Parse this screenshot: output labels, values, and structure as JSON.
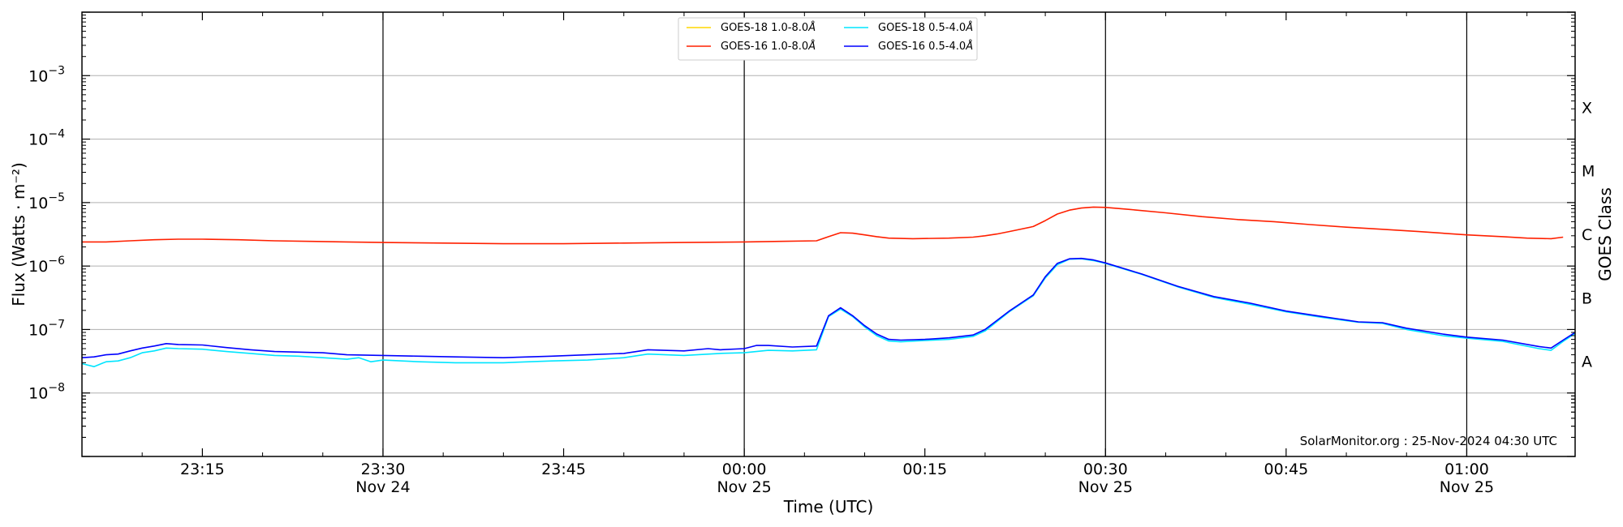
{
  "chart_data": {
    "type": "line",
    "title": "",
    "xlabel": "Time (UTC)",
    "ylabel": "Flux (Watts · m⁻²)",
    "y2label": "GOES Class",
    "yscale": "log",
    "xlim": [
      "2024-11-24 23:05",
      "2024-11-25 01:09"
    ],
    "ylim": [
      1e-09,
      0.01
    ],
    "grid": "horizontal",
    "legend_position": "top-center",
    "x_ticks": [
      {
        "time": "2024-11-24 23:15",
        "label": "23:15",
        "sublabel": ""
      },
      {
        "time": "2024-11-24 23:30",
        "label": "23:30",
        "sublabel": "Nov 24"
      },
      {
        "time": "2024-11-24 23:45",
        "label": "23:45",
        "sublabel": ""
      },
      {
        "time": "2024-11-25 00:00",
        "label": "00:00",
        "sublabel": "Nov 25"
      },
      {
        "time": "2024-11-25 00:15",
        "label": "00:15",
        "sublabel": ""
      },
      {
        "time": "2024-11-25 00:30",
        "label": "00:30",
        "sublabel": "Nov 25"
      },
      {
        "time": "2024-11-25 00:45",
        "label": "00:45",
        "sublabel": ""
      },
      {
        "time": "2024-11-25 01:00",
        "label": "01:00",
        "sublabel": "Nov 25"
      }
    ],
    "y_ticks": [
      {
        "value": 1e-08,
        "base": "10",
        "exp": "−8"
      },
      {
        "value": 1e-07,
        "base": "10",
        "exp": "−7"
      },
      {
        "value": 1e-06,
        "base": "10",
        "exp": "−6"
      },
      {
        "value": 1e-05,
        "base": "10",
        "exp": "−5"
      },
      {
        "value": 0.0001,
        "base": "10",
        "exp": "−4"
      },
      {
        "value": 0.001,
        "base": "10",
        "exp": "−3"
      }
    ],
    "vertical_lines": [
      "2024-11-24 23:30",
      "2024-11-25 00:00",
      "2024-11-25 00:30",
      "2024-11-25 01:00"
    ],
    "goes_classes": [
      {
        "label": "A",
        "value": 3.16e-08
      },
      {
        "label": "B",
        "value": 3.16e-07
      },
      {
        "label": "C",
        "value": 3.16e-06
      },
      {
        "label": "M",
        "value": 3.16e-05
      },
      {
        "label": "X",
        "value": 0.000316
      }
    ],
    "legend": [
      {
        "label": "GOES-18 1.0-8.0",
        "unit": "Å",
        "color": "#ffd700"
      },
      {
        "label": "GOES-18 0.5-4.0",
        "unit": "Å",
        "color": "#00e5ff"
      },
      {
        "label": "GOES-16 1.0-8.0",
        "unit": "Å",
        "color": "#ff2000"
      },
      {
        "label": "GOES-16 0.5-4.0",
        "unit": "Å",
        "color": "#0000ff"
      }
    ],
    "credit": "SolarMonitor.org : 25-Nov-2024 04:30 UTC",
    "series": [
      {
        "name": "GOES-16 1.0-8.0",
        "color": "#ff2000",
        "points": [
          [
            "2024-11-24 23:05",
            2.4e-06
          ],
          [
            "2024-11-24 23:07",
            2.4e-06
          ],
          [
            "2024-11-24 23:09",
            2.5e-06
          ],
          [
            "2024-11-24 23:11",
            2.6e-06
          ],
          [
            "2024-11-24 23:13",
            2.65e-06
          ],
          [
            "2024-11-24 23:15",
            2.65e-06
          ],
          [
            "2024-11-24 23:18",
            2.6e-06
          ],
          [
            "2024-11-24 23:21",
            2.5e-06
          ],
          [
            "2024-11-24 23:24",
            2.45e-06
          ],
          [
            "2024-11-24 23:27",
            2.4e-06
          ],
          [
            "2024-11-24 23:30",
            2.35e-06
          ],
          [
            "2024-11-24 23:35",
            2.3e-06
          ],
          [
            "2024-11-24 23:40",
            2.25e-06
          ],
          [
            "2024-11-24 23:45",
            2.25e-06
          ],
          [
            "2024-11-24 23:50",
            2.3e-06
          ],
          [
            "2024-11-24 23:55",
            2.35e-06
          ],
          [
            "2024-11-25 00:00",
            2.4e-06
          ],
          [
            "2024-11-25 00:03",
            2.45e-06
          ],
          [
            "2024-11-25 00:06",
            2.5e-06
          ],
          [
            "2024-11-25 00:07",
            2.9e-06
          ],
          [
            "2024-11-25 00:08",
            3.35e-06
          ],
          [
            "2024-11-25 00:09",
            3.3e-06
          ],
          [
            "2024-11-25 00:10",
            3.1e-06
          ],
          [
            "2024-11-25 00:11",
            2.9e-06
          ],
          [
            "2024-11-25 00:12",
            2.75e-06
          ],
          [
            "2024-11-25 00:14",
            2.7e-06
          ],
          [
            "2024-11-25 00:17",
            2.75e-06
          ],
          [
            "2024-11-25 00:19",
            2.85e-06
          ],
          [
            "2024-11-25 00:20",
            3e-06
          ],
          [
            "2024-11-25 00:21",
            3.2e-06
          ],
          [
            "2024-11-25 00:22",
            3.5e-06
          ],
          [
            "2024-11-25 00:24",
            4.2e-06
          ],
          [
            "2024-11-25 00:25",
            5.2e-06
          ],
          [
            "2024-11-25 00:26",
            6.6e-06
          ],
          [
            "2024-11-25 00:27",
            7.6e-06
          ],
          [
            "2024-11-25 00:28",
            8.2e-06
          ],
          [
            "2024-11-25 00:29",
            8.5e-06
          ],
          [
            "2024-11-25 00:30",
            8.4e-06
          ],
          [
            "2024-11-25 00:32",
            7.8e-06
          ],
          [
            "2024-11-25 00:35",
            6.9e-06
          ],
          [
            "2024-11-25 00:38",
            6e-06
          ],
          [
            "2024-11-25 00:41",
            5.4e-06
          ],
          [
            "2024-11-25 00:44",
            5e-06
          ],
          [
            "2024-11-25 00:47",
            4.5e-06
          ],
          [
            "2024-11-25 00:50",
            4.1e-06
          ],
          [
            "2024-11-25 00:53",
            3.8e-06
          ],
          [
            "2024-11-25 00:56",
            3.5e-06
          ],
          [
            "2024-11-25 01:00",
            3.1e-06
          ],
          [
            "2024-11-25 01:03",
            2.9e-06
          ],
          [
            "2024-11-25 01:05",
            2.75e-06
          ],
          [
            "2024-11-25 01:07",
            2.7e-06
          ],
          [
            "2024-11-25 01:08",
            2.85e-06
          ]
        ]
      },
      {
        "name": "GOES-18 0.5-4.0",
        "color": "#00e5ff",
        "points": [
          [
            "2024-11-24 23:05",
            2.9e-08
          ],
          [
            "2024-11-24 23:06",
            2.6e-08
          ],
          [
            "2024-11-24 23:07",
            3.1e-08
          ],
          [
            "2024-11-24 23:08",
            3.2e-08
          ],
          [
            "2024-11-24 23:09",
            3.6e-08
          ],
          [
            "2024-11-24 23:10",
            4.3e-08
          ],
          [
            "2024-11-24 23:11",
            4.6e-08
          ],
          [
            "2024-11-24 23:12",
            5.1e-08
          ],
          [
            "2024-11-24 23:13",
            5e-08
          ],
          [
            "2024-11-24 23:15",
            4.9e-08
          ],
          [
            "2024-11-24 23:17",
            4.5e-08
          ],
          [
            "2024-11-24 23:19",
            4.2e-08
          ],
          [
            "2024-11-24 23:21",
            3.9e-08
          ],
          [
            "2024-11-24 23:23",
            3.8e-08
          ],
          [
            "2024-11-24 23:25",
            3.6e-08
          ],
          [
            "2024-11-24 23:27",
            3.4e-08
          ],
          [
            "2024-11-24 23:28",
            3.6e-08
          ],
          [
            "2024-11-24 23:29",
            3.1e-08
          ],
          [
            "2024-11-24 23:30",
            3.3e-08
          ],
          [
            "2024-11-24 23:33",
            3.1e-08
          ],
          [
            "2024-11-24 23:36",
            3e-08
          ],
          [
            "2024-11-24 23:40",
            3e-08
          ],
          [
            "2024-11-24 23:44",
            3.2e-08
          ],
          [
            "2024-11-24 23:47",
            3.3e-08
          ],
          [
            "2024-11-24 23:50",
            3.6e-08
          ],
          [
            "2024-11-24 23:52",
            4.1e-08
          ],
          [
            "2024-11-24 23:55",
            3.9e-08
          ],
          [
            "2024-11-24 23:58",
            4.2e-08
          ],
          [
            "2024-11-25 00:00",
            4.3e-08
          ],
          [
            "2024-11-25 00:02",
            4.7e-08
          ],
          [
            "2024-11-25 00:04",
            4.6e-08
          ],
          [
            "2024-11-25 00:06",
            4.8e-08
          ],
          [
            "2024-11-25 00:07",
            1.6e-07
          ],
          [
            "2024-11-25 00:08",
            2.1e-07
          ],
          [
            "2024-11-25 00:09",
            1.6e-07
          ],
          [
            "2024-11-25 00:10",
            1.1e-07
          ],
          [
            "2024-11-25 00:11",
            8e-08
          ],
          [
            "2024-11-25 00:12",
            6.6e-08
          ],
          [
            "2024-11-25 00:13",
            6.4e-08
          ],
          [
            "2024-11-25 00:15",
            6.7e-08
          ],
          [
            "2024-11-25 00:17",
            7e-08
          ],
          [
            "2024-11-25 00:19",
            7.8e-08
          ],
          [
            "2024-11-25 00:20",
            9.5e-08
          ],
          [
            "2024-11-25 00:22",
            1.9e-07
          ],
          [
            "2024-11-25 00:24",
            3.4e-07
          ],
          [
            "2024-11-25 00:25",
            6.5e-07
          ],
          [
            "2024-11-25 00:26",
            1.05e-06
          ],
          [
            "2024-11-25 00:27",
            1.28e-06
          ],
          [
            "2024-11-25 00:28",
            1.3e-06
          ],
          [
            "2024-11-25 00:29",
            1.22e-06
          ],
          [
            "2024-11-25 00:30",
            1.1e-06
          ],
          [
            "2024-11-25 00:33",
            7.4e-07
          ],
          [
            "2024-11-25 00:36",
            4.7e-07
          ],
          [
            "2024-11-25 00:39",
            3.2e-07
          ],
          [
            "2024-11-25 00:42",
            2.5e-07
          ],
          [
            "2024-11-25 00:45",
            1.9e-07
          ],
          [
            "2024-11-25 00:48",
            1.55e-07
          ],
          [
            "2024-11-25 00:51",
            1.3e-07
          ],
          [
            "2024-11-25 00:53",
            1.25e-07
          ],
          [
            "2024-11-25 00:55",
            1e-07
          ],
          [
            "2024-11-25 00:58",
            8e-08
          ],
          [
            "2024-11-25 01:00",
            7.3e-08
          ],
          [
            "2024-11-25 01:03",
            6.5e-08
          ],
          [
            "2024-11-25 01:06",
            5e-08
          ],
          [
            "2024-11-25 01:07",
            4.7e-08
          ],
          [
            "2024-11-25 01:08",
            6.5e-08
          ],
          [
            "2024-11-25 01:09",
            8.7e-08
          ]
        ]
      },
      {
        "name": "GOES-16 0.5-4.0",
        "color": "#0000ff",
        "points": [
          [
            "2024-11-24 23:05",
            3.6e-08
          ],
          [
            "2024-11-24 23:06",
            3.7e-08
          ],
          [
            "2024-11-24 23:07",
            4e-08
          ],
          [
            "2024-11-24 23:08",
            4.1e-08
          ],
          [
            "2024-11-24 23:09",
            4.6e-08
          ],
          [
            "2024-11-24 23:10",
            5.1e-08
          ],
          [
            "2024-11-24 23:11",
            5.5e-08
          ],
          [
            "2024-11-24 23:12",
            6e-08
          ],
          [
            "2024-11-24 23:13",
            5.8e-08
          ],
          [
            "2024-11-24 23:15",
            5.7e-08
          ],
          [
            "2024-11-24 23:17",
            5.2e-08
          ],
          [
            "2024-11-24 23:19",
            4.8e-08
          ],
          [
            "2024-11-24 23:21",
            4.5e-08
          ],
          [
            "2024-11-24 23:23",
            4.4e-08
          ],
          [
            "2024-11-24 23:25",
            4.3e-08
          ],
          [
            "2024-11-24 23:27",
            4e-08
          ],
          [
            "2024-11-24 23:30",
            3.9e-08
          ],
          [
            "2024-11-24 23:33",
            3.8e-08
          ],
          [
            "2024-11-24 23:36",
            3.7e-08
          ],
          [
            "2024-11-24 23:40",
            3.6e-08
          ],
          [
            "2024-11-24 23:44",
            3.8e-08
          ],
          [
            "2024-11-24 23:47",
            4e-08
          ],
          [
            "2024-11-24 23:50",
            4.2e-08
          ],
          [
            "2024-11-24 23:52",
            4.8e-08
          ],
          [
            "2024-11-24 23:55",
            4.6e-08
          ],
          [
            "2024-11-24 23:57",
            5e-08
          ],
          [
            "2024-11-24 23:58",
            4.8e-08
          ],
          [
            "2024-11-25 00:00",
            5e-08
          ],
          [
            "2024-11-25 00:01",
            5.6e-08
          ],
          [
            "2024-11-25 00:02",
            5.6e-08
          ],
          [
            "2024-11-25 00:04",
            5.3e-08
          ],
          [
            "2024-11-25 00:06",
            5.5e-08
          ],
          [
            "2024-11-25 00:07",
            1.65e-07
          ],
          [
            "2024-11-25 00:08",
            2.2e-07
          ],
          [
            "2024-11-25 00:09",
            1.65e-07
          ],
          [
            "2024-11-25 00:10",
            1.15e-07
          ],
          [
            "2024-11-25 00:11",
            8.5e-08
          ],
          [
            "2024-11-25 00:12",
            7e-08
          ],
          [
            "2024-11-25 00:13",
            6.8e-08
          ],
          [
            "2024-11-25 00:15",
            7e-08
          ],
          [
            "2024-11-25 00:17",
            7.4e-08
          ],
          [
            "2024-11-25 00:19",
            8.2e-08
          ],
          [
            "2024-11-25 00:20",
            1e-07
          ],
          [
            "2024-11-25 00:22",
            1.95e-07
          ],
          [
            "2024-11-25 00:24",
            3.5e-07
          ],
          [
            "2024-11-25 00:25",
            6.8e-07
          ],
          [
            "2024-11-25 00:26",
            1.1e-06
          ],
          [
            "2024-11-25 00:27",
            1.3e-06
          ],
          [
            "2024-11-25 00:28",
            1.32e-06
          ],
          [
            "2024-11-25 00:29",
            1.25e-06
          ],
          [
            "2024-11-25 00:30",
            1.12e-06
          ],
          [
            "2024-11-25 00:33",
            7.5e-07
          ],
          [
            "2024-11-25 00:36",
            4.8e-07
          ],
          [
            "2024-11-25 00:39",
            3.3e-07
          ],
          [
            "2024-11-25 00:42",
            2.6e-07
          ],
          [
            "2024-11-25 00:45",
            1.95e-07
          ],
          [
            "2024-11-25 00:48",
            1.6e-07
          ],
          [
            "2024-11-25 00:51",
            1.32e-07
          ],
          [
            "2024-11-25 00:53",
            1.28e-07
          ],
          [
            "2024-11-25 00:55",
            1.05e-07
          ],
          [
            "2024-11-25 00:58",
            8.5e-08
          ],
          [
            "2024-11-25 01:00",
            7.6e-08
          ],
          [
            "2024-11-25 01:03",
            6.8e-08
          ],
          [
            "2024-11-25 01:06",
            5.4e-08
          ],
          [
            "2024-11-25 01:07",
            5.1e-08
          ],
          [
            "2024-11-25 01:08",
            6.8e-08
          ],
          [
            "2024-11-25 01:09",
            9e-08
          ]
        ]
      }
    ]
  }
}
